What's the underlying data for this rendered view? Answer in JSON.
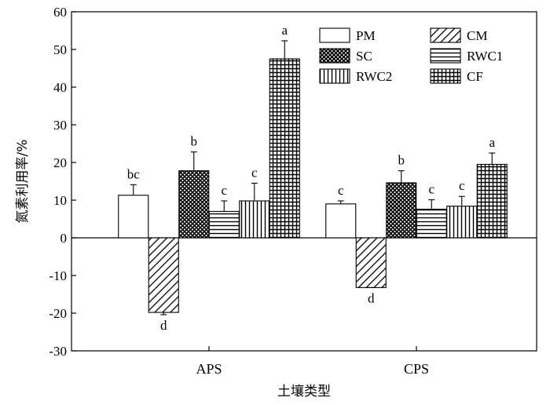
{
  "chart_data": {
    "type": "bar",
    "xlabel": "土壤类型",
    "ylabel": "氮素利用率/%",
    "ylim": [
      -30,
      60
    ],
    "yticks": [
      -30,
      -20,
      -10,
      0,
      10,
      20,
      30,
      40,
      50,
      60
    ],
    "grid": false,
    "legend_position": "top-right",
    "categories": [
      "APS",
      "CPS"
    ],
    "series": [
      {
        "name": "PM",
        "pattern": "blank",
        "values": [
          11.3,
          9.0
        ],
        "errors": [
          2.8,
          0.8
        ],
        "labels": [
          "bc",
          "c"
        ]
      },
      {
        "name": "CM",
        "pattern": "diagonal",
        "values": [
          -19.8,
          -13.2
        ],
        "errors": [
          0.6,
          0.0
        ],
        "labels": [
          "d",
          "d"
        ]
      },
      {
        "name": "SC",
        "pattern": "crosshatch",
        "values": [
          17.8,
          14.6
        ],
        "errors": [
          5.0,
          3.2
        ],
        "labels": [
          "b",
          "b"
        ]
      },
      {
        "name": "RWC1",
        "pattern": "horizontal",
        "values": [
          7.0,
          7.6
        ],
        "errors": [
          2.8,
          2.5
        ],
        "labels": [
          "c",
          "c"
        ]
      },
      {
        "name": "RWC2",
        "pattern": "vertical",
        "values": [
          9.8,
          8.4
        ],
        "errors": [
          4.7,
          2.6
        ],
        "labels": [
          "c",
          "c"
        ]
      },
      {
        "name": "CF",
        "pattern": "grid",
        "values": [
          47.5,
          19.5
        ],
        "errors": [
          4.8,
          3.0
        ],
        "labels": [
          "a",
          "a"
        ]
      }
    ]
  }
}
